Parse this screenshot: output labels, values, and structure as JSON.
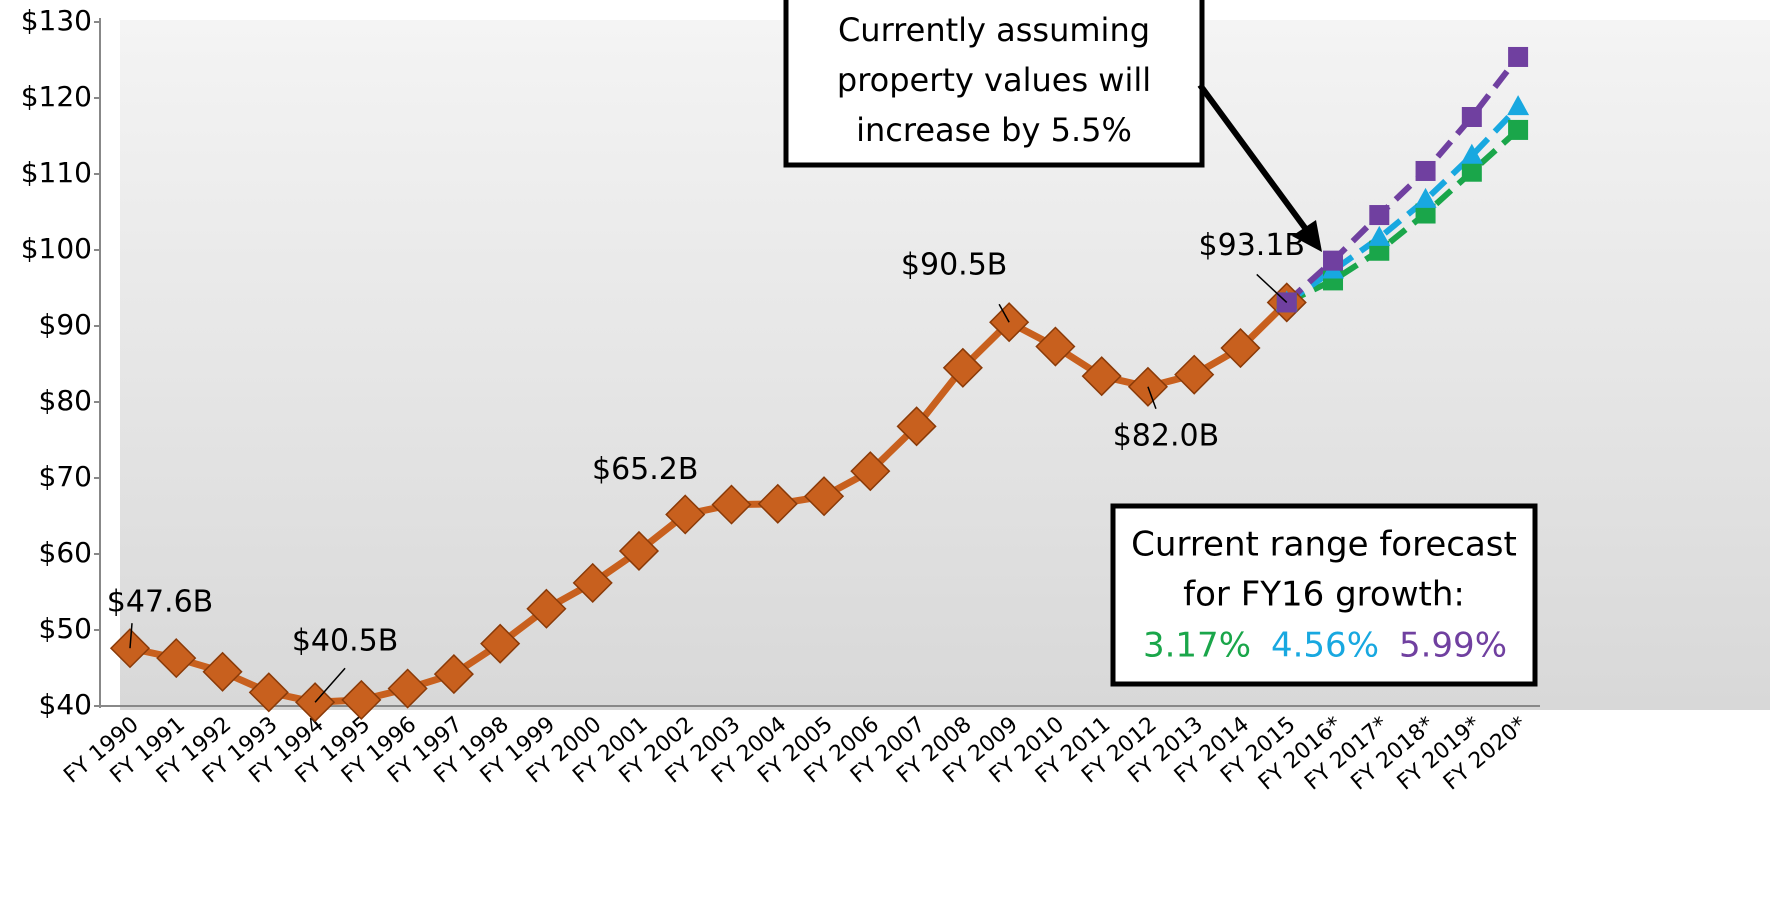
{
  "chart_data": {
    "type": "line",
    "categories": [
      "FY 1990",
      "FY 1991",
      "FY 1992",
      "FY 1993",
      "FY 1994",
      "FY 1995",
      "FY 1996",
      "FY 1997",
      "FY 1998",
      "FY 1999",
      "FY 2000",
      "FY 2001",
      "FY 2002",
      "FY 2003",
      "FY 2004",
      "FY 2005",
      "FY 2006",
      "FY 2007",
      "FY 2008",
      "FY 2009",
      "FY 2010",
      "FY 2011",
      "FY 2012",
      "FY 2013",
      "FY 2014",
      "FY 2015",
      "FY 2016*",
      "FY 2017*",
      "FY 2018*",
      "FY 2019*",
      "FY 2020*"
    ],
    "series": [
      {
        "color": "#c8601e",
        "marker": "diamond",
        "dashed": false,
        "values": [
          47.6,
          46.3,
          44.5,
          41.8,
          40.5,
          40.8,
          42.3,
          44.2,
          48.2,
          52.8,
          56.2,
          60.4,
          65.2,
          66.5,
          66.6,
          67.6,
          70.9,
          76.8,
          84.5,
          90.5,
          87.3,
          83.4,
          82.0,
          83.6,
          87.1,
          93.1,
          null,
          null,
          null,
          null,
          null
        ],
        "value_labels": [
          "$47.6B",
          null,
          null,
          null,
          "$40.5B",
          null,
          null,
          null,
          null,
          null,
          null,
          null,
          "$65.2B",
          null,
          null,
          null,
          null,
          null,
          null,
          "$90.5B",
          null,
          null,
          "$82.0B",
          null,
          null,
          "$93.1B",
          null,
          null,
          null,
          null,
          null
        ]
      },
      {
        "name": "3.17%",
        "color": "#1aa64a",
        "marker": "square",
        "dashed": true,
        "values": [
          null,
          null,
          null,
          null,
          null,
          null,
          null,
          null,
          null,
          null,
          null,
          null,
          null,
          null,
          null,
          null,
          null,
          null,
          null,
          null,
          null,
          null,
          null,
          null,
          null,
          93.1,
          96.0,
          99.9,
          104.8,
          110.3,
          115.8
        ]
      },
      {
        "name": "4.56%",
        "color": "#18a8e0",
        "marker": "triangle",
        "dashed": true,
        "values": [
          null,
          null,
          null,
          null,
          null,
          null,
          null,
          null,
          null,
          null,
          null,
          null,
          null,
          null,
          null,
          null,
          null,
          null,
          null,
          null,
          null,
          null,
          null,
          null,
          null,
          93.1,
          97.3,
          101.6,
          106.6,
          112.4,
          118.8
        ]
      },
      {
        "name": "5.99%",
        "color": "#7040a0",
        "marker": "square",
        "dashed": true,
        "values": [
          null,
          null,
          null,
          null,
          null,
          null,
          null,
          null,
          null,
          null,
          null,
          null,
          null,
          null,
          null,
          null,
          null,
          null,
          null,
          null,
          null,
          null,
          null,
          null,
          null,
          93.1,
          98.6,
          104.6,
          110.4,
          117.5,
          125.4
        ]
      }
    ],
    "ylim": [
      40,
      130
    ],
    "yticks": [
      {
        "value": 40,
        "label": "$40"
      },
      {
        "value": 50,
        "label": "$50"
      },
      {
        "value": 60,
        "label": "$60"
      },
      {
        "value": 70,
        "label": "$70"
      },
      {
        "value": 80,
        "label": "$80"
      },
      {
        "value": 90,
        "label": "$90"
      },
      {
        "value": 100,
        "label": "$100"
      },
      {
        "value": 110,
        "label": "$110"
      },
      {
        "value": 120,
        "label": "$120"
      },
      {
        "value": 130,
        "label": "$130"
      }
    ],
    "callout": [
      "Currently assuming",
      "property values will",
      "increase by 5.5%"
    ],
    "legend_title": [
      "Current range forecast",
      "for FY16 growth:"
    ]
  }
}
